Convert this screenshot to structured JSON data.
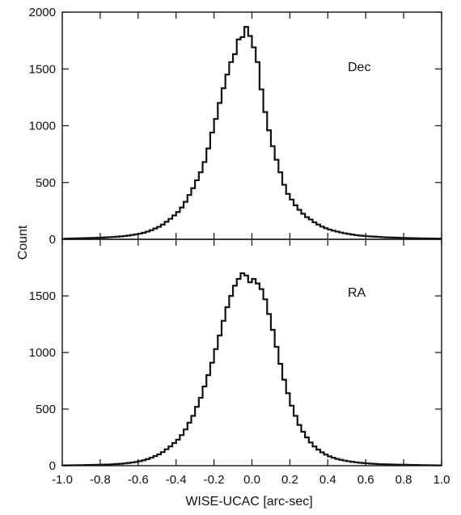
{
  "chart_data": {
    "type": "histogram",
    "xlabel": "WISE-UCAC [arc-sec]",
    "ylabel": "Count",
    "xlim": [
      -1.0,
      1.0
    ],
    "x_ticks": [
      "-1.0",
      "-0.8",
      "-0.6",
      "-0.4",
      "-0.2",
      "0.0",
      "0.2",
      "0.4",
      "0.6",
      "0.8",
      "1.0"
    ],
    "bin_width": 0.02,
    "grid": false,
    "panels": [
      {
        "label": "Dec",
        "ylim": [
          0,
          2000
        ],
        "y_ticks": [
          "0",
          "500",
          "1000",
          "1500",
          "2000"
        ],
        "bins": [
          [
            -1.0,
            5
          ],
          [
            -0.98,
            6
          ],
          [
            -0.96,
            7
          ],
          [
            -0.94,
            8
          ],
          [
            -0.92,
            9
          ],
          [
            -0.9,
            10
          ],
          [
            -0.88,
            11
          ],
          [
            -0.86,
            12
          ],
          [
            -0.84,
            13
          ],
          [
            -0.82,
            14
          ],
          [
            -0.8,
            15
          ],
          [
            -0.78,
            17
          ],
          [
            -0.76,
            19
          ],
          [
            -0.74,
            21
          ],
          [
            -0.72,
            23
          ],
          [
            -0.7,
            26
          ],
          [
            -0.68,
            29
          ],
          [
            -0.66,
            33
          ],
          [
            -0.64,
            38
          ],
          [
            -0.62,
            44
          ],
          [
            -0.6,
            50
          ],
          [
            -0.58,
            58
          ],
          [
            -0.56,
            68
          ],
          [
            -0.54,
            80
          ],
          [
            -0.52,
            95
          ],
          [
            -0.5,
            110
          ],
          [
            -0.48,
            130
          ],
          [
            -0.46,
            155
          ],
          [
            -0.44,
            180
          ],
          [
            -0.42,
            210
          ],
          [
            -0.4,
            240
          ],
          [
            -0.38,
            280
          ],
          [
            -0.36,
            330
          ],
          [
            -0.34,
            390
          ],
          [
            -0.32,
            450
          ],
          [
            -0.3,
            520
          ],
          [
            -0.28,
            590
          ],
          [
            -0.26,
            680
          ],
          [
            -0.24,
            800
          ],
          [
            -0.22,
            940
          ],
          [
            -0.2,
            1060
          ],
          [
            -0.18,
            1200
          ],
          [
            -0.16,
            1330
          ],
          [
            -0.14,
            1450
          ],
          [
            -0.12,
            1560
          ],
          [
            -0.1,
            1630
          ],
          [
            -0.08,
            1760
          ],
          [
            -0.06,
            1780
          ],
          [
            -0.04,
            1870
          ],
          [
            -0.02,
            1790
          ],
          [
            0.0,
            1690
          ],
          [
            0.02,
            1560
          ],
          [
            0.04,
            1320
          ],
          [
            0.06,
            1120
          ],
          [
            0.08,
            960
          ],
          [
            0.1,
            820
          ],
          [
            0.12,
            700
          ],
          [
            0.14,
            590
          ],
          [
            0.16,
            480
          ],
          [
            0.18,
            400
          ],
          [
            0.2,
            350
          ],
          [
            0.22,
            300
          ],
          [
            0.24,
            260
          ],
          [
            0.26,
            225
          ],
          [
            0.28,
            195
          ],
          [
            0.3,
            175
          ],
          [
            0.32,
            150
          ],
          [
            0.34,
            130
          ],
          [
            0.36,
            112
          ],
          [
            0.38,
            98
          ],
          [
            0.4,
            86
          ],
          [
            0.42,
            76
          ],
          [
            0.44,
            68
          ],
          [
            0.46,
            60
          ],
          [
            0.48,
            53
          ],
          [
            0.5,
            47
          ],
          [
            0.52,
            42
          ],
          [
            0.54,
            37
          ],
          [
            0.56,
            33
          ],
          [
            0.58,
            30
          ],
          [
            0.6,
            27
          ],
          [
            0.62,
            25
          ],
          [
            0.64,
            23
          ],
          [
            0.66,
            21
          ],
          [
            0.68,
            19
          ],
          [
            0.7,
            17
          ],
          [
            0.72,
            16
          ],
          [
            0.74,
            15
          ],
          [
            0.76,
            14
          ],
          [
            0.78,
            13
          ],
          [
            0.8,
            12
          ],
          [
            0.82,
            11
          ],
          [
            0.84,
            10
          ],
          [
            0.86,
            9
          ],
          [
            0.88,
            8
          ],
          [
            0.9,
            8
          ],
          [
            0.92,
            7
          ],
          [
            0.94,
            7
          ],
          [
            0.96,
            6
          ],
          [
            0.98,
            6
          ]
        ]
      },
      {
        "label": "RA",
        "ylim": [
          0,
          2000
        ],
        "y_ticks": [
          "0",
          "500",
          "1000",
          "1500"
        ],
        "bins": [
          [
            -1.0,
            3
          ],
          [
            -0.98,
            3
          ],
          [
            -0.96,
            4
          ],
          [
            -0.94,
            4
          ],
          [
            -0.92,
            5
          ],
          [
            -0.9,
            5
          ],
          [
            -0.88,
            6
          ],
          [
            -0.86,
            6
          ],
          [
            -0.84,
            7
          ],
          [
            -0.82,
            8
          ],
          [
            -0.8,
            9
          ],
          [
            -0.78,
            10
          ],
          [
            -0.76,
            11
          ],
          [
            -0.74,
            13
          ],
          [
            -0.72,
            15
          ],
          [
            -0.7,
            17
          ],
          [
            -0.68,
            20
          ],
          [
            -0.66,
            24
          ],
          [
            -0.64,
            28
          ],
          [
            -0.62,
            33
          ],
          [
            -0.6,
            40
          ],
          [
            -0.58,
            48
          ],
          [
            -0.56,
            58
          ],
          [
            -0.54,
            70
          ],
          [
            -0.52,
            85
          ],
          [
            -0.5,
            100
          ],
          [
            -0.48,
            120
          ],
          [
            -0.46,
            145
          ],
          [
            -0.44,
            170
          ],
          [
            -0.42,
            200
          ],
          [
            -0.4,
            230
          ],
          [
            -0.38,
            270
          ],
          [
            -0.36,
            320
          ],
          [
            -0.34,
            380
          ],
          [
            -0.32,
            440
          ],
          [
            -0.3,
            520
          ],
          [
            -0.28,
            600
          ],
          [
            -0.26,
            700
          ],
          [
            -0.24,
            800
          ],
          [
            -0.22,
            910
          ],
          [
            -0.2,
            1030
          ],
          [
            -0.18,
            1150
          ],
          [
            -0.16,
            1280
          ],
          [
            -0.14,
            1400
          ],
          [
            -0.12,
            1500
          ],
          [
            -0.1,
            1590
          ],
          [
            -0.08,
            1650
          ],
          [
            -0.06,
            1700
          ],
          [
            -0.04,
            1680
          ],
          [
            -0.02,
            1620
          ],
          [
            0.0,
            1650
          ],
          [
            0.02,
            1610
          ],
          [
            0.04,
            1560
          ],
          [
            0.06,
            1470
          ],
          [
            0.08,
            1340
          ],
          [
            0.1,
            1200
          ],
          [
            0.12,
            1050
          ],
          [
            0.14,
            900
          ],
          [
            0.16,
            760
          ],
          [
            0.18,
            640
          ],
          [
            0.2,
            530
          ],
          [
            0.22,
            440
          ],
          [
            0.24,
            360
          ],
          [
            0.26,
            300
          ],
          [
            0.28,
            250
          ],
          [
            0.3,
            205
          ],
          [
            0.32,
            170
          ],
          [
            0.34,
            142
          ],
          [
            0.36,
            118
          ],
          [
            0.38,
            98
          ],
          [
            0.4,
            82
          ],
          [
            0.42,
            70
          ],
          [
            0.44,
            60
          ],
          [
            0.46,
            52
          ],
          [
            0.48,
            45
          ],
          [
            0.5,
            39
          ],
          [
            0.52,
            34
          ],
          [
            0.54,
            30
          ],
          [
            0.56,
            26
          ],
          [
            0.58,
            23
          ],
          [
            0.6,
            20
          ],
          [
            0.62,
            18
          ],
          [
            0.64,
            16
          ],
          [
            0.66,
            14
          ],
          [
            0.68,
            13
          ],
          [
            0.7,
            12
          ],
          [
            0.72,
            11
          ],
          [
            0.74,
            10
          ],
          [
            0.76,
            9
          ],
          [
            0.78,
            8
          ],
          [
            0.8,
            8
          ],
          [
            0.82,
            7
          ],
          [
            0.84,
            6
          ],
          [
            0.86,
            6
          ],
          [
            0.88,
            5
          ],
          [
            0.9,
            5
          ],
          [
            0.92,
            4
          ],
          [
            0.94,
            4
          ],
          [
            0.96,
            3
          ],
          [
            0.98,
            3
          ]
        ]
      }
    ]
  }
}
